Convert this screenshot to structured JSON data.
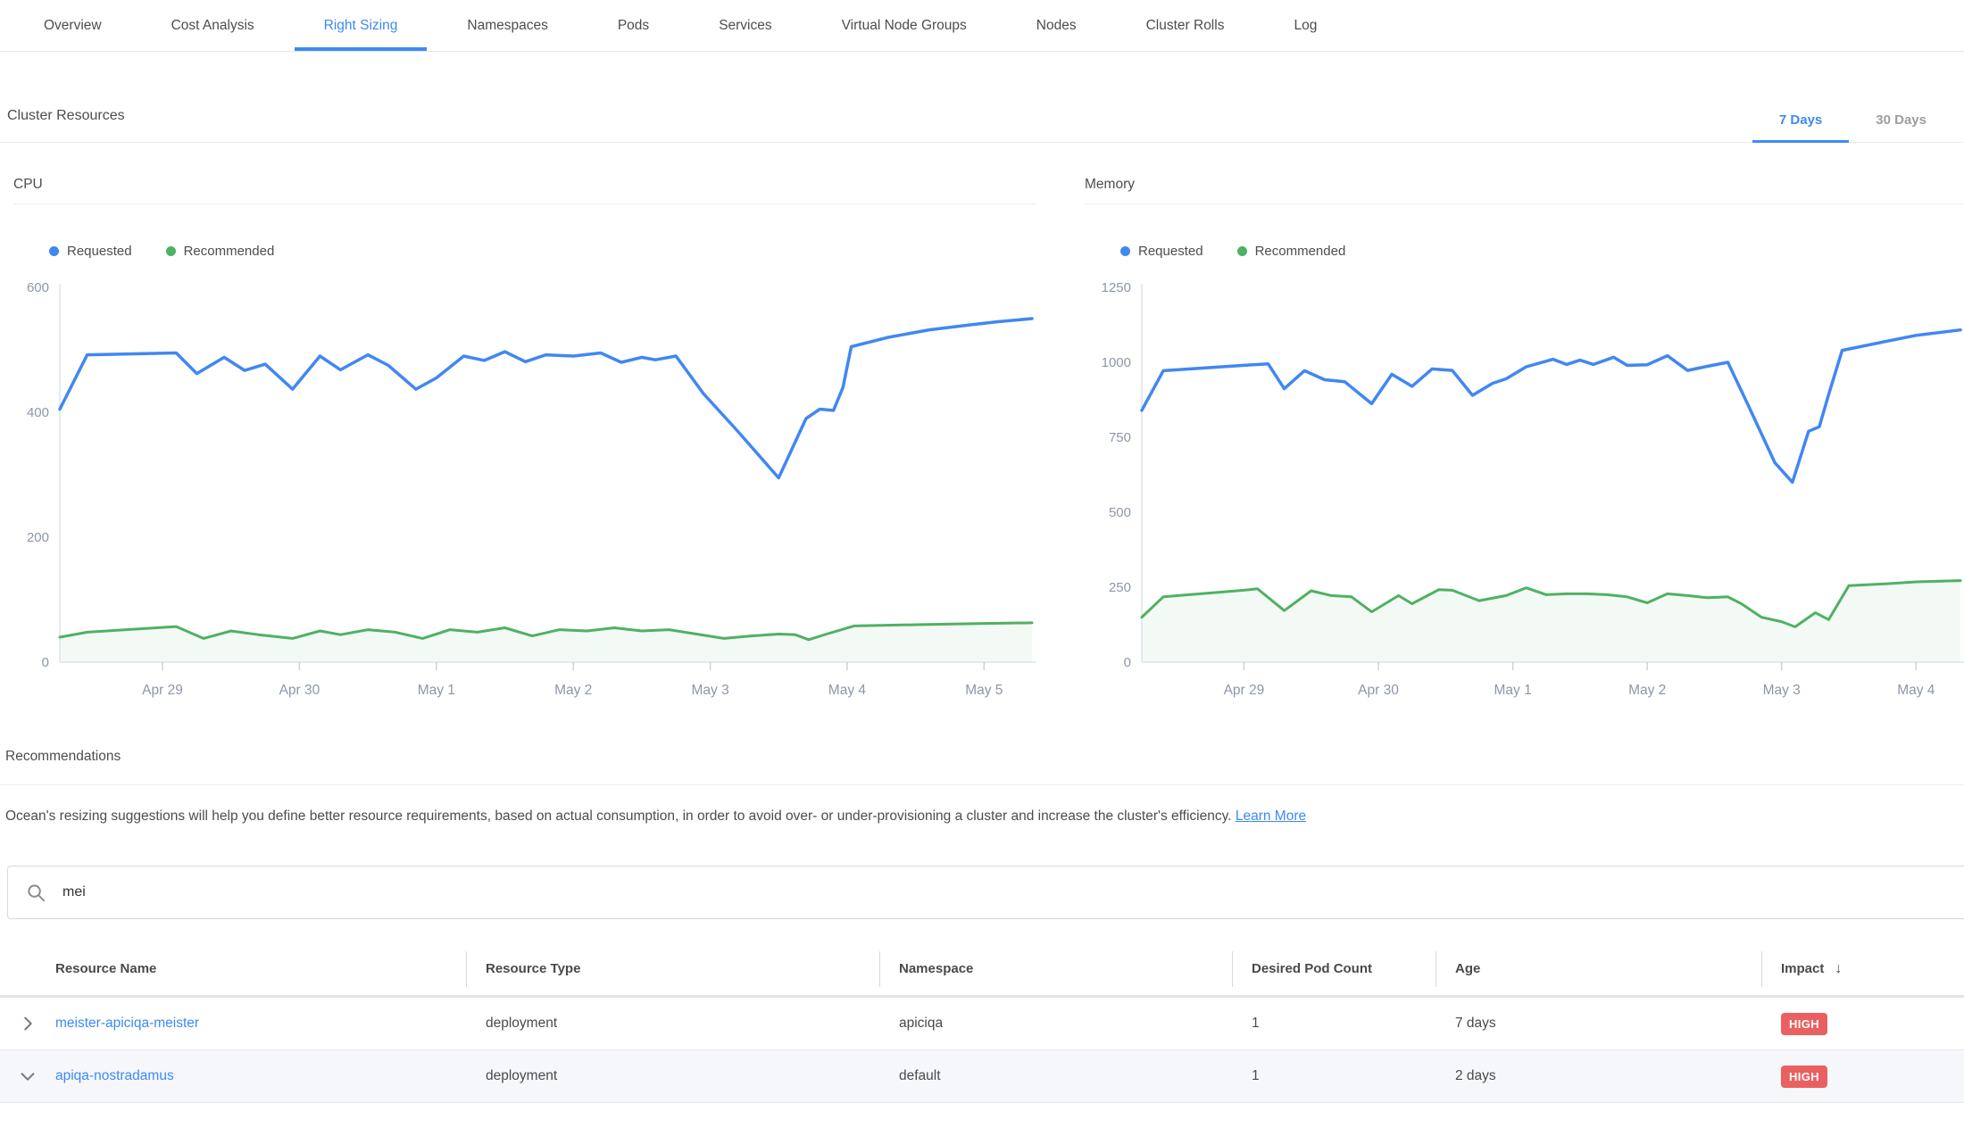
{
  "tabs": [
    {
      "label": "Overview",
      "active": false
    },
    {
      "label": "Cost Analysis",
      "active": false
    },
    {
      "label": "Right Sizing",
      "active": true
    },
    {
      "label": "Namespaces",
      "active": false
    },
    {
      "label": "Pods",
      "active": false
    },
    {
      "label": "Services",
      "active": false
    },
    {
      "label": "Virtual Node Groups",
      "active": false
    },
    {
      "label": "Nodes",
      "active": false
    },
    {
      "label": "Cluster Rolls",
      "active": false
    },
    {
      "label": "Log",
      "active": false
    }
  ],
  "section": {
    "title": "Cluster Resources",
    "range_tabs": [
      {
        "label": "7 Days",
        "active": true
      },
      {
        "label": "30 Days",
        "active": false
      }
    ]
  },
  "colors": {
    "accent_blue": "#3d8af5",
    "line_blue": "#4187f2",
    "line_green": "#4fb163",
    "axis_label": "#8d97a7",
    "badge_red": "#ea6060"
  },
  "chart_data": [
    {
      "type": "line",
      "title": "CPU",
      "x_tick_labels": [
        "Apr 29",
        "Apr 30",
        "May 1",
        "May 2",
        "May 3",
        "May 4",
        "May 5"
      ],
      "x_tick_positions": [
        0,
        1,
        2,
        3,
        4,
        5,
        6
      ],
      "x_range": [
        -0.75,
        6.35
      ],
      "ylim": [
        0,
        600
      ],
      "y_ticks": [
        0,
        200,
        400,
        600
      ],
      "grid": false,
      "legend_position": "top-left",
      "series": [
        {
          "name": "Requested",
          "color": "#4187f2",
          "fill": false,
          "x": [
            -0.75,
            -0.55,
            0.1,
            0.25,
            0.45,
            0.6,
            0.75,
            0.95,
            1.15,
            1.3,
            1.5,
            1.65,
            1.85,
            2.0,
            2.2,
            2.35,
            2.5,
            2.65,
            2.8,
            3.0,
            3.2,
            3.35,
            3.5,
            3.6,
            3.75,
            3.95,
            4.2,
            4.5,
            4.7,
            4.8,
            4.9,
            4.97,
            5.03,
            5.3,
            5.6,
            5.9,
            6.1,
            6.35
          ],
          "values": [
            405,
            492,
            495,
            462,
            488,
            467,
            477,
            437,
            490,
            468,
            492,
            475,
            437,
            455,
            490,
            483,
            497,
            481,
            492,
            490,
            495,
            480,
            488,
            484,
            490,
            430,
            370,
            295,
            390,
            405,
            403,
            440,
            505,
            520,
            532,
            540,
            545,
            550
          ]
        },
        {
          "name": "Recommended",
          "color": "#4fb163",
          "fill": true,
          "x": [
            -0.75,
            -0.55,
            0.1,
            0.3,
            0.5,
            0.7,
            0.95,
            1.15,
            1.3,
            1.5,
            1.7,
            1.9,
            2.1,
            2.3,
            2.5,
            2.7,
            2.9,
            3.1,
            3.3,
            3.5,
            3.7,
            3.9,
            4.1,
            4.3,
            4.5,
            4.62,
            4.72,
            4.85,
            5.05,
            5.5,
            6.0,
            6.35
          ],
          "values": [
            40,
            48,
            57,
            38,
            50,
            44,
            38,
            50,
            44,
            52,
            48,
            38,
            52,
            48,
            55,
            42,
            52,
            50,
            55,
            50,
            52,
            45,
            38,
            42,
            45,
            44,
            36,
            45,
            58,
            60,
            62,
            63
          ]
        }
      ]
    },
    {
      "type": "line",
      "title": "Memory",
      "x_tick_labels": [
        "Apr 29",
        "Apr 30",
        "May 1",
        "May 2",
        "May 3",
        "May 4"
      ],
      "x_tick_positions": [
        0,
        1,
        2,
        3,
        4,
        5
      ],
      "x_range": [
        -0.76,
        5.33
      ],
      "ylim": [
        0,
        1250
      ],
      "y_ticks": [
        0,
        250,
        500,
        750,
        1000,
        1250
      ],
      "grid": false,
      "legend_position": "top-left",
      "series": [
        {
          "name": "Requested",
          "color": "#4187f2",
          "fill": false,
          "x": [
            -0.76,
            -0.6,
            0.0,
            0.18,
            0.3,
            0.45,
            0.6,
            0.75,
            0.95,
            1.1,
            1.25,
            1.4,
            1.55,
            1.7,
            1.85,
            1.95,
            2.1,
            2.3,
            2.4,
            2.5,
            2.6,
            2.75,
            2.85,
            3.0,
            3.15,
            3.3,
            3.45,
            3.6,
            3.75,
            3.95,
            4.08,
            4.2,
            4.28,
            4.35,
            4.45,
            4.8,
            5.0,
            5.33
          ],
          "values": [
            840,
            972,
            990,
            995,
            912,
            972,
            942,
            935,
            862,
            960,
            920,
            978,
            973,
            890,
            930,
            945,
            985,
            1010,
            993,
            1007,
            993,
            1017,
            990,
            992,
            1022,
            973,
            987,
            1000,
            858,
            665,
            600,
            770,
            785,
            893,
            1040,
            1072,
            1090,
            1108
          ]
        },
        {
          "name": "Recommended",
          "color": "#4fb163",
          "fill": true,
          "x": [
            -0.76,
            -0.6,
            0.0,
            0.1,
            0.3,
            0.5,
            0.65,
            0.8,
            0.95,
            1.15,
            1.25,
            1.45,
            1.55,
            1.75,
            1.95,
            2.1,
            2.25,
            2.4,
            2.55,
            2.7,
            2.85,
            3.0,
            3.15,
            3.3,
            3.45,
            3.6,
            3.7,
            3.85,
            4.0,
            4.1,
            4.25,
            4.35,
            4.5,
            4.8,
            5.0,
            5.33
          ],
          "values": [
            150,
            218,
            240,
            245,
            172,
            238,
            222,
            218,
            168,
            222,
            195,
            242,
            240,
            205,
            222,
            248,
            225,
            228,
            228,
            225,
            218,
            198,
            228,
            222,
            215,
            218,
            195,
            150,
            135,
            118,
            165,
            142,
            255,
            262,
            268,
            272
          ]
        }
      ]
    }
  ],
  "recommendations": {
    "title": "Recommendations",
    "description": "Ocean's resizing suggestions will help you define better resource requirements, based on actual consumption, in order to avoid over- or under-provisioning a cluster and increase the cluster's efficiency.",
    "learn_more_label": "Learn More"
  },
  "search": {
    "value": "mei"
  },
  "table": {
    "columns": [
      "Resource Name",
      "Resource Type",
      "Namespace",
      "Desired Pod Count",
      "Age",
      "Impact"
    ],
    "sort_column": "Impact",
    "sort_arrow": "↓",
    "rows": [
      {
        "name": "meister-apiciqa-meister",
        "type": "deployment",
        "namespace": "apiciqa",
        "pods": "1",
        "age": "7 days",
        "impact": "HIGH",
        "expanded": false
      },
      {
        "name": "apiqa-nostradamus",
        "type": "deployment",
        "namespace": "default",
        "pods": "1",
        "age": "2 days",
        "impact": "HIGH",
        "expanded": true
      }
    ]
  }
}
